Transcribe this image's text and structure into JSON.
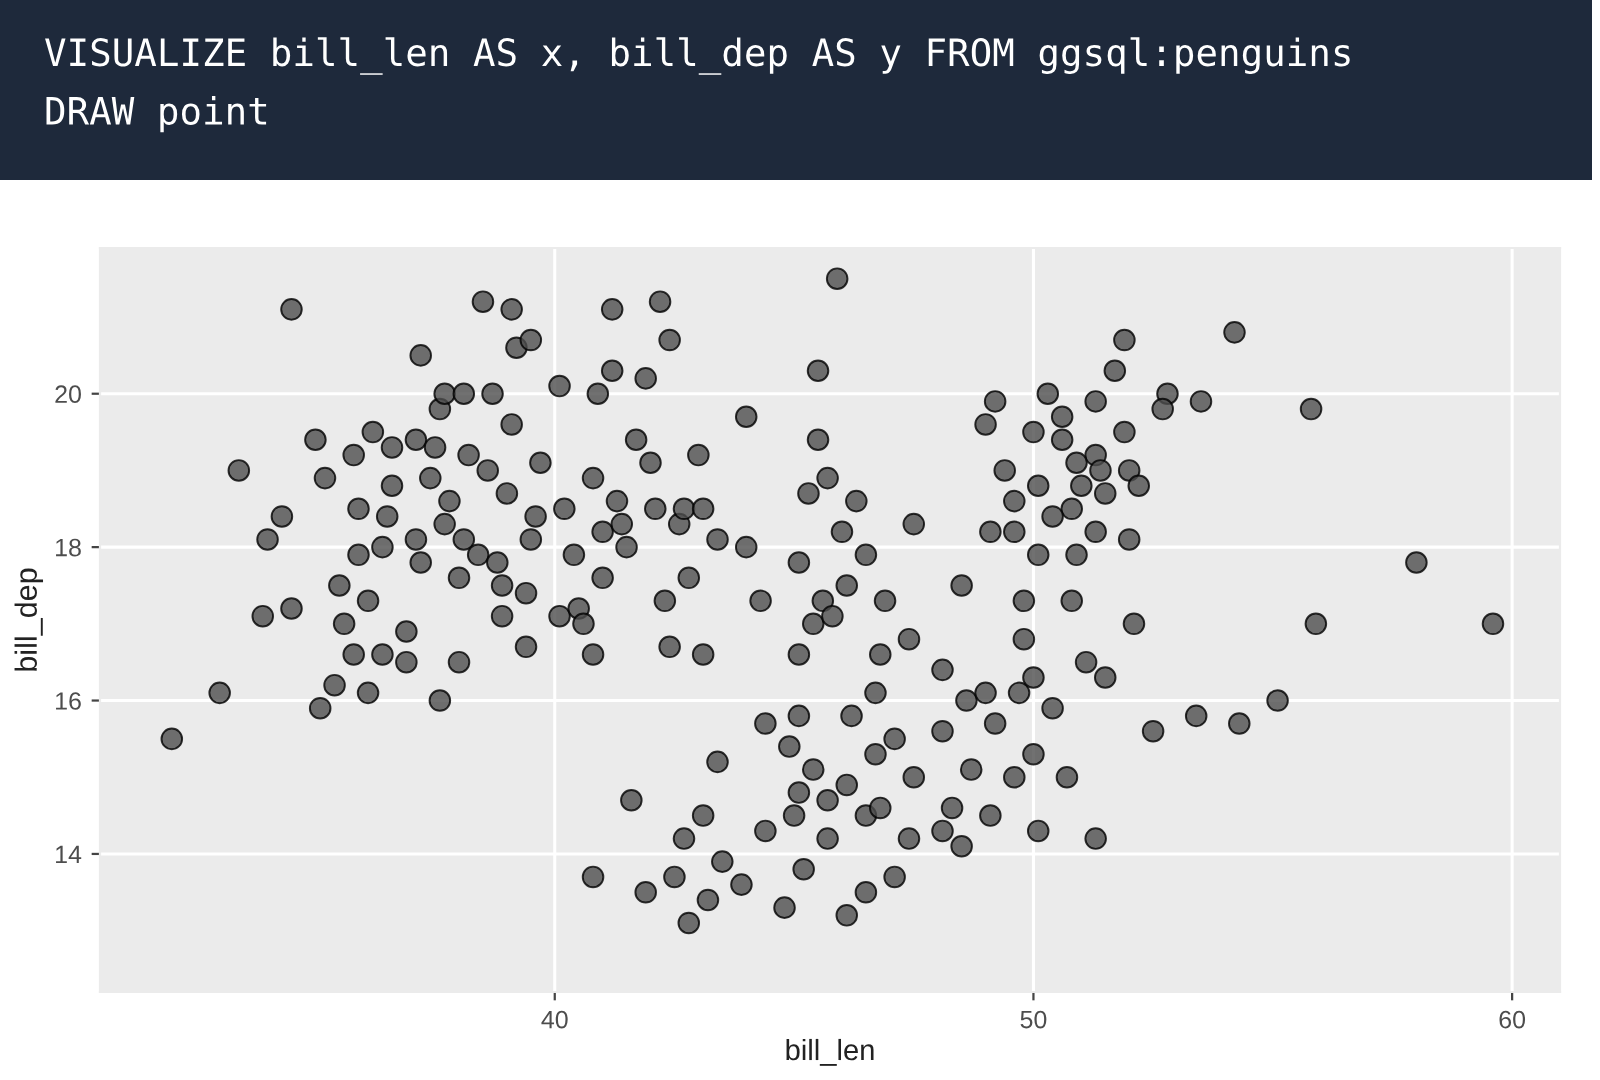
{
  "chart_data": {
    "type": "scatter",
    "title": "VISUALIZE bill_len AS x, bill_dep AS y FROM ggsql:penguins",
    "subtitle": "DRAW point",
    "xlabel": "bill_len",
    "ylabel": "bill_dep",
    "xlim": [
      30.5,
      61.0
    ],
    "ylim": [
      12.2,
      21.9
    ],
    "xticks": [
      40,
      50,
      60
    ],
    "yticks": [
      14,
      16,
      18,
      20
    ],
    "grid": true,
    "marker": "circle",
    "series": [
      {
        "color": "#4d4d4d",
        "x": [
          32.0,
          33.0,
          34.5,
          33.4,
          33.9,
          34.0,
          34.3,
          34.5,
          35.0,
          35.1,
          35.2,
          35.4,
          35.5,
          35.6,
          35.8,
          35.8,
          35.9,
          35.9,
          36.1,
          36.1,
          36.2,
          36.4,
          36.4,
          36.5,
          36.6,
          36.6,
          36.9,
          36.9,
          37.1,
          37.1,
          37.2,
          37.2,
          37.4,
          37.5,
          37.6,
          37.6,
          37.7,
          37.7,
          37.8,
          38.0,
          38.0,
          38.1,
          38.1,
          38.2,
          38.4,
          38.5,
          38.6,
          38.7,
          38.8,
          38.9,
          38.9,
          39.0,
          39.1,
          39.1,
          39.2,
          39.4,
          39.4,
          39.5,
          39.5,
          39.6,
          39.7,
          40.1,
          40.1,
          40.2,
          40.4,
          40.5,
          40.8,
          40.8,
          40.8,
          41.3,
          41.2,
          41.2,
          41.9,
          40.9,
          41.7,
          42.0,
          42.2,
          42.4,
          41.0,
          41.5,
          41.4,
          41.0,
          40.6,
          42.1,
          42.6,
          42.7,
          42.3,
          42.4,
          42.8,
          43.1,
          43.1,
          43.0,
          43.4,
          44.0,
          44.0,
          44.3,
          45.1,
          45.5,
          45.9,
          45.5,
          45.7,
          45.3,
          46.3,
          46.0,
          46.5,
          46.1,
          45.6,
          46.9,
          45.4,
          45.8,
          45.1,
          47.4,
          46.8,
          47.5,
          48.5,
          41.6,
          41.9,
          42.5,
          42.8,
          43.2,
          42.7,
          43.1,
          43.4,
          43.5,
          43.9,
          44.4,
          44.4,
          44.8,
          44.9,
          45.1,
          45.1,
          45.0,
          45.2,
          45.4,
          45.7,
          45.7,
          46.1,
          46.1,
          46.2,
          46.5,
          46.5,
          46.7,
          46.8,
          46.7,
          47.1,
          47.1,
          47.4,
          47.5,
          48.1,
          48.1,
          48.1,
          48.3,
          48.5,
          48.6,
          48.7,
          49.0,
          49.1,
          49.2,
          49.6,
          49.7,
          50.0,
          50.0,
          50.1,
          50.4,
          50.7,
          51.1,
          51.5,
          51.3,
          52.5,
          53.4,
          54.3,
          55.1,
          55.9,
          58.0,
          59.6,
          52.1,
          50.8,
          50.9,
          54.2,
          51.9,
          51.7,
          52.8,
          52.7,
          53.5,
          55.8,
          51.3,
          50.6,
          50.6,
          51.9,
          51.3,
          50.9,
          51.4,
          52.0,
          52.2,
          51.0,
          51.5,
          50.8,
          51.3,
          52.0,
          50.3,
          49.2,
          49.0,
          50.0,
          49.4,
          50.1,
          49.6,
          50.4,
          49.1,
          49.6,
          50.1,
          49.8,
          49.8
        ],
        "values": [
          15.5,
          16.1,
          21.1,
          19.0,
          17.1,
          18.1,
          18.4,
          17.2,
          19.4,
          15.9,
          18.9,
          16.2,
          17.5,
          17.0,
          16.6,
          19.2,
          18.5,
          17.9,
          16.1,
          17.3,
          19.5,
          18.0,
          16.6,
          18.4,
          18.8,
          19.3,
          16.5,
          16.9,
          19.4,
          18.1,
          20.5,
          17.8,
          18.9,
          19.3,
          19.8,
          16.0,
          20.0,
          18.3,
          18.6,
          17.6,
          16.5,
          20.0,
          18.1,
          19.2,
          17.9,
          21.2,
          19.0,
          20.0,
          17.8,
          17.5,
          17.1,
          18.7,
          21.1,
          19.6,
          20.6,
          17.4,
          16.7,
          20.7,
          18.1,
          18.4,
          19.1,
          17.1,
          20.1,
          18.5,
          17.9,
          17.2,
          16.6,
          13.7,
          18.9,
          18.6,
          21.1,
          20.3,
          20.2,
          20.0,
          19.4,
          19.1,
          21.2,
          20.7,
          18.2,
          18.0,
          18.3,
          17.6,
          17.0,
          18.5,
          18.3,
          18.5,
          17.3,
          16.7,
          17.6,
          16.6,
          18.5,
          19.2,
          18.1,
          19.7,
          18.0,
          17.3,
          17.8,
          20.3,
          21.5,
          19.4,
          18.9,
          18.7,
          18.6,
          18.2,
          17.9,
          17.5,
          17.3,
          17.3,
          17.0,
          17.1,
          16.6,
          16.8,
          16.6,
          18.3,
          17.5,
          14.7,
          13.5,
          13.7,
          13.1,
          13.4,
          14.2,
          14.5,
          15.2,
          13.9,
          13.6,
          15.7,
          14.3,
          13.3,
          15.4,
          15.8,
          14.8,
          14.5,
          13.8,
          15.1,
          14.7,
          14.2,
          13.2,
          14.9,
          15.8,
          13.5,
          14.5,
          15.3,
          14.6,
          16.1,
          15.5,
          13.7,
          14.2,
          15.0,
          16.4,
          15.6,
          14.3,
          14.6,
          14.1,
          16.0,
          15.1,
          16.1,
          14.5,
          15.7,
          15.0,
          16.1,
          16.3,
          15.3,
          14.3,
          15.9,
          15.0,
          16.5,
          16.3,
          14.2,
          15.6,
          15.8,
          15.7,
          16.0,
          17.0,
          17.8,
          17.0,
          17.0,
          17.3,
          17.9,
          20.8,
          20.7,
          20.3,
          20.0,
          19.8,
          19.9,
          19.8,
          19.9,
          19.7,
          19.4,
          19.5,
          19.2,
          19.1,
          19.0,
          19.0,
          18.8,
          18.8,
          18.7,
          18.5,
          18.2,
          18.1,
          20.0,
          19.9,
          19.6,
          19.5,
          19.0,
          18.8,
          18.6,
          18.4,
          18.2,
          18.2,
          17.9,
          17.3,
          16.8
        ]
      }
    ]
  }
}
